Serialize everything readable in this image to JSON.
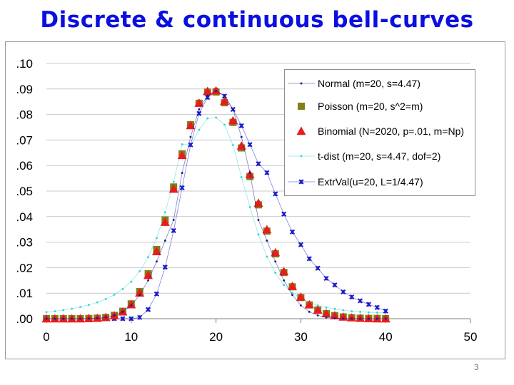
{
  "slide": {
    "title": "Discrete & continuous bell-curves",
    "page_number": "3"
  },
  "chart_data": {
    "type": "scatter",
    "xlim": [
      0,
      50
    ],
    "ylim": [
      0,
      0.1
    ],
    "x_ticks": [
      "0",
      "10",
      "20",
      "30",
      "40",
      "50"
    ],
    "y_ticks": [
      ".00",
      ".01",
      ".02",
      ".03",
      ".04",
      ".05",
      ".06",
      ".07",
      ".08",
      ".09",
      ".10"
    ],
    "grid": "horizontal",
    "legend_position": "top-right",
    "x": [
      0,
      1,
      2,
      3,
      4,
      5,
      6,
      7,
      8,
      9,
      10,
      11,
      12,
      13,
      14,
      15,
      16,
      17,
      18,
      19,
      20,
      21,
      22,
      23,
      24,
      25,
      26,
      27,
      28,
      29,
      30,
      31,
      32,
      33,
      34,
      35,
      36,
      37,
      38,
      39,
      40
    ],
    "series": [
      {
        "name": "Normal (m=20, s=4.47)",
        "color": "#1a1a8a",
        "marker": "dot",
        "line": true,
        "values": [
          0,
          0,
          0,
          0,
          0,
          0.0001,
          0.0002,
          0.0005,
          0.0013,
          0.0027,
          0.0052,
          0.0093,
          0.015,
          0.0224,
          0.0306,
          0.0387,
          0.0571,
          0.0712,
          0.082,
          0.0874,
          0.0892,
          0.0874,
          0.082,
          0.0712,
          0.0571,
          0.0387,
          0.0306,
          0.0224,
          0.015,
          0.0093,
          0.0052,
          0.0027,
          0.0013,
          0.0005,
          0.0002,
          0.0001,
          0,
          0,
          0,
          0,
          0
        ]
      },
      {
        "name": "Poisson (m=20, s^2=m)",
        "color": "#808019",
        "marker": "square",
        "line": false,
        "values": [
          0,
          0,
          0,
          0,
          0,
          0.0001,
          0.0002,
          0.0005,
          0.0013,
          0.0029,
          0.0058,
          0.0106,
          0.0176,
          0.0271,
          0.0387,
          0.0516,
          0.0646,
          0.076,
          0.0844,
          0.0888,
          0.0888,
          0.0846,
          0.0769,
          0.0669,
          0.0557,
          0.0446,
          0.0343,
          0.0254,
          0.0181,
          0.0125,
          0.0083,
          0.0054,
          0.0034,
          0.002,
          0.0012,
          0.0007,
          0.0004,
          0.0002,
          0.0001,
          0.0001,
          0
        ]
      },
      {
        "name": "Binomial (N=2020, p=.01, m=Np)",
        "color": "#e81c1c",
        "marker": "triangle",
        "line": false,
        "values": [
          0,
          0,
          0,
          0,
          0,
          0.0001,
          0.0002,
          0.0005,
          0.0012,
          0.0027,
          0.0055,
          0.0101,
          0.017,
          0.0263,
          0.0378,
          0.0508,
          0.064,
          0.0757,
          0.0845,
          0.0891,
          0.0893,
          0.0852,
          0.0776,
          0.0677,
          0.0565,
          0.0453,
          0.0349,
          0.0259,
          0.0185,
          0.0127,
          0.0085,
          0.0055,
          0.0034,
          0.002,
          0.0012,
          0.0007,
          0.0004,
          0.0002,
          0.0001,
          0,
          0
        ]
      },
      {
        "name": "t-dist (m=20, s=4.47, dof=2)",
        "color": "#33d6d6",
        "marker": "dot",
        "line": true,
        "values": [
          0.0026,
          0.0029,
          0.0034,
          0.0039,
          0.0046,
          0.0054,
          0.0064,
          0.0077,
          0.0094,
          0.0116,
          0.0145,
          0.0186,
          0.0241,
          0.0316,
          0.0417,
          0.0536,
          0.0683,
          0.068,
          0.074,
          0.0785,
          0.0788,
          0.076,
          0.068,
          0.0555,
          0.0437,
          0.033,
          0.0243,
          0.018,
          0.0132,
          0.0101,
          0.008,
          0.0064,
          0.0052,
          0.0044,
          0.0038,
          0.0033,
          0.0029,
          0.0027,
          0.0025,
          0.0024,
          0.0024
        ]
      },
      {
        "name": "ExtrVal(u=20, L=1/4.47)",
        "color": "#1a1ac8",
        "marker": "x",
        "line": true,
        "values": [
          0,
          0,
          0,
          0,
          0,
          0,
          0,
          0,
          0,
          0,
          0,
          0.0005,
          0.0036,
          0.0097,
          0.0202,
          0.0345,
          0.0513,
          0.0681,
          0.0804,
          0.0867,
          0.0895,
          0.0872,
          0.082,
          0.0756,
          0.0682,
          0.0607,
          0.0572,
          0.0489,
          0.041,
          0.034,
          0.029,
          0.0235,
          0.0198,
          0.0158,
          0.0132,
          0.0105,
          0.0085,
          0.007,
          0.0056,
          0.0044,
          0.003
        ]
      }
    ]
  }
}
